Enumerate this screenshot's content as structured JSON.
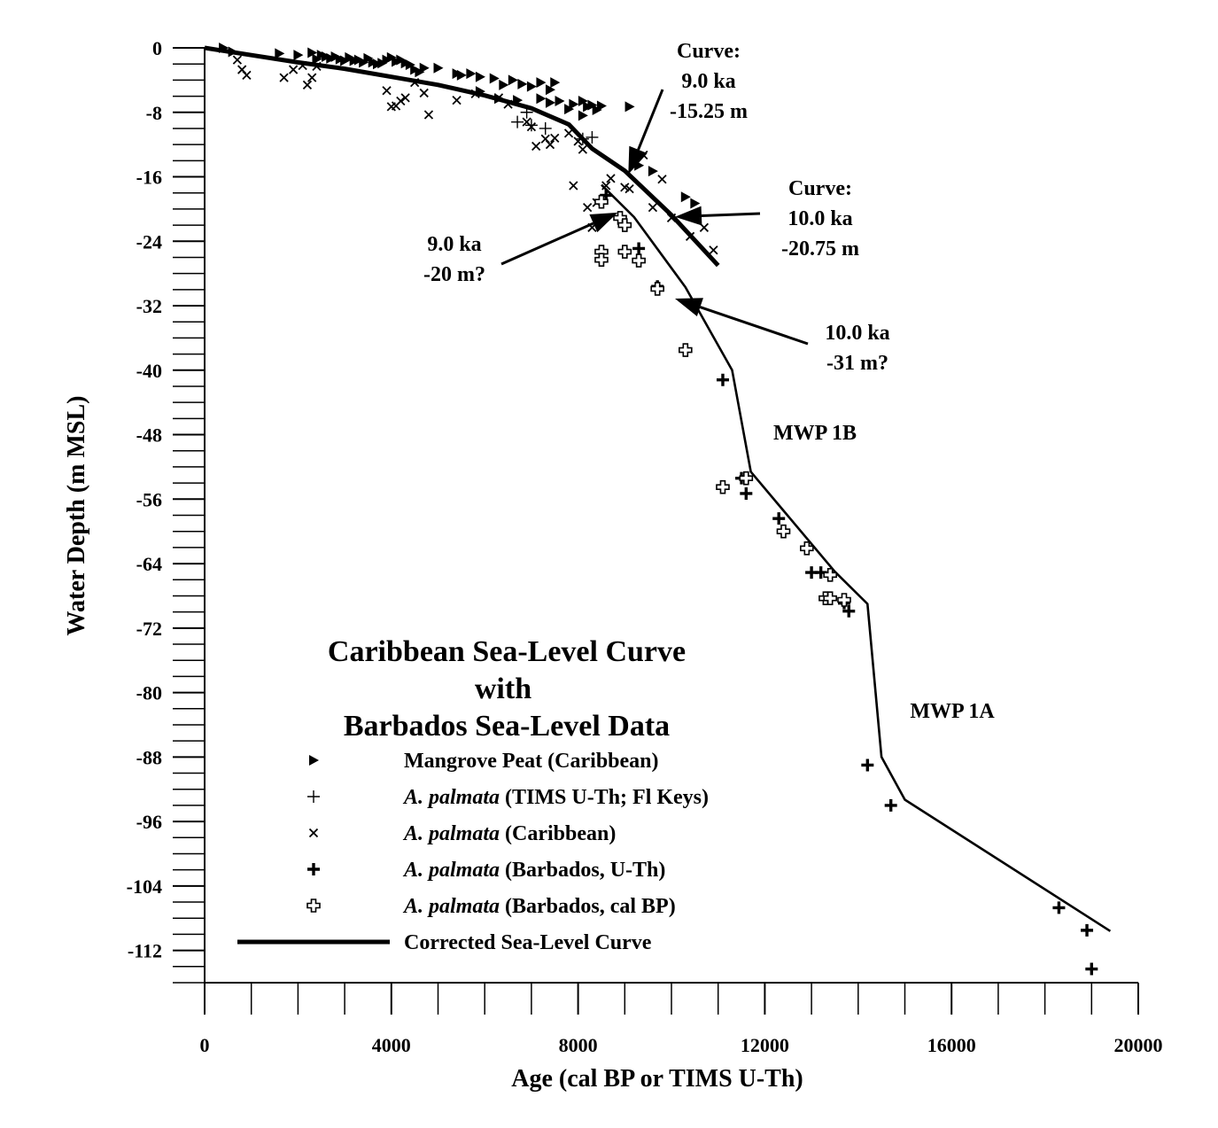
{
  "chart_data": {
    "type": "scatter",
    "title": [
      "Caribbean Sea-Level Curve",
      "with",
      "Barbados Sea-Level Data"
    ],
    "xlabel": "Age (cal BP or TIMS U-Th)",
    "ylabel": "Water Depth (m MSL)",
    "xlim": [
      0,
      20000
    ],
    "ylim": [
      -116,
      0
    ],
    "x_ticks": [
      0,
      4000,
      8000,
      12000,
      16000,
      20000
    ],
    "y_ticks": [
      0,
      -8,
      -16,
      -24,
      -32,
      -40,
      -48,
      -56,
      -64,
      -72,
      -80,
      -88,
      -96,
      -104,
      -112
    ],
    "legend_position": "bottom-left",
    "series": [
      {
        "name": "Mangrove Peat (Caribbean)",
        "label_parts": [
          {
            "text": "Mangrove Peat (Caribbean)",
            "italic": false
          }
        ],
        "marker": "triangle-right",
        "points": [
          [
            400,
            0
          ],
          [
            600,
            -0.5
          ],
          [
            1600,
            -0.7
          ],
          [
            2000,
            -0.9
          ],
          [
            2300,
            -0.6
          ],
          [
            2400,
            -1.4
          ],
          [
            2500,
            -0.9
          ],
          [
            2600,
            -1.1
          ],
          [
            2700,
            -1.3
          ],
          [
            2800,
            -1.1
          ],
          [
            2900,
            -1.4
          ],
          [
            3000,
            -1.6
          ],
          [
            3100,
            -1.2
          ],
          [
            3200,
            -1.6
          ],
          [
            3300,
            -1.5
          ],
          [
            3400,
            -1.8
          ],
          [
            3500,
            -1.3
          ],
          [
            3600,
            -1.8
          ],
          [
            3700,
            -2.0
          ],
          [
            3800,
            -1.9
          ],
          [
            3900,
            -1.5
          ],
          [
            4000,
            -1.2
          ],
          [
            4100,
            -1.7
          ],
          [
            4200,
            -1.5
          ],
          [
            4300,
            -1.9
          ],
          [
            4400,
            -2.1
          ],
          [
            4500,
            -2.7
          ],
          [
            4600,
            -3.0
          ],
          [
            4700,
            -2.5
          ],
          [
            5000,
            -2.5
          ],
          [
            5400,
            -3.2
          ],
          [
            5500,
            -3.4
          ],
          [
            5700,
            -3.2
          ],
          [
            5900,
            -3.6
          ],
          [
            6200,
            -3.8
          ],
          [
            6400,
            -4.6
          ],
          [
            6600,
            -4.0
          ],
          [
            6800,
            -4.5
          ],
          [
            7000,
            -4.8
          ],
          [
            7200,
            -4.3
          ],
          [
            7400,
            -5.2
          ],
          [
            7500,
            -4.3
          ],
          [
            7600,
            -6.6
          ],
          [
            7900,
            -7.0
          ],
          [
            8100,
            -6.6
          ],
          [
            8200,
            -7.3
          ],
          [
            8300,
            -7.1
          ],
          [
            8400,
            -7.7
          ],
          [
            8500,
            -7.2
          ],
          [
            9100,
            -7.3
          ],
          [
            9300,
            -14.6
          ],
          [
            9600,
            -15.3
          ],
          [
            10300,
            -18.5
          ],
          [
            10500,
            -19.3
          ],
          [
            5900,
            -5.4
          ],
          [
            6300,
            -6.3
          ],
          [
            6700,
            -6.5
          ],
          [
            7200,
            -6.3
          ],
          [
            7400,
            -6.8
          ],
          [
            7800,
            -7.6
          ],
          [
            8100,
            -8.4
          ]
        ]
      },
      {
        "name": "A. palmata (TIMS U-Th; Fl Keys)",
        "label_parts": [
          {
            "text": "A. palmata",
            "italic": true
          },
          {
            "text": " (TIMS U-Th; Fl Keys)",
            "italic": false
          }
        ],
        "marker": "plus-thin",
        "points": [
          [
            6700,
            -9.2
          ],
          [
            7000,
            -9.6
          ],
          [
            7300,
            -10.0
          ],
          [
            8100,
            -11.3
          ],
          [
            8300,
            -11.1
          ],
          [
            6900,
            -8.0
          ]
        ]
      },
      {
        "name": "A. palmata (Caribbean)",
        "label_parts": [
          {
            "text": "A. palmata",
            "italic": true
          },
          {
            "text": " (Caribbean)",
            "italic": false
          }
        ],
        "marker": "x",
        "points": [
          [
            700,
            -1.5
          ],
          [
            800,
            -2.7
          ],
          [
            900,
            -3.4
          ],
          [
            1700,
            -3.7
          ],
          [
            1900,
            -2.7
          ],
          [
            2100,
            -2.2
          ],
          [
            2200,
            -4.6
          ],
          [
            2300,
            -3.7
          ],
          [
            2400,
            -2.3
          ],
          [
            3900,
            -5.3
          ],
          [
            4000,
            -7.3
          ],
          [
            4100,
            -7.2
          ],
          [
            4200,
            -6.6
          ],
          [
            4300,
            -6.2
          ],
          [
            4500,
            -4.3
          ],
          [
            4700,
            -5.6
          ],
          [
            4800,
            -8.3
          ],
          [
            5400,
            -6.5
          ],
          [
            5800,
            -5.7
          ],
          [
            6300,
            -6.2
          ],
          [
            6500,
            -7.0
          ],
          [
            6900,
            -9.2
          ],
          [
            7000,
            -9.8
          ],
          [
            7100,
            -12.2
          ],
          [
            7300,
            -11.3
          ],
          [
            7400,
            -12.0
          ],
          [
            7500,
            -11.2
          ],
          [
            7800,
            -10.6
          ],
          [
            8000,
            -11.6
          ],
          [
            8100,
            -12.6
          ],
          [
            7900,
            -17.1
          ],
          [
            8200,
            -19.8
          ],
          [
            8300,
            -22.3
          ],
          [
            8400,
            -19.2
          ],
          [
            8600,
            -17.1
          ],
          [
            8700,
            -16.2
          ],
          [
            9000,
            -17.3
          ],
          [
            9100,
            -17.5
          ],
          [
            9600,
            -19.8
          ],
          [
            9800,
            -16.3
          ],
          [
            10000,
            -21.1
          ],
          [
            10400,
            -23.4
          ],
          [
            10700,
            -22.3
          ],
          [
            10900,
            -25.1
          ],
          [
            9400,
            -13.3
          ]
        ]
      },
      {
        "name": "A. palmata (Barbados, U-Th)",
        "label_parts": [
          {
            "text": "A. palmata",
            "italic": true
          },
          {
            "text": " (Barbados, U-Th)",
            "italic": false
          }
        ],
        "marker": "plus-bold",
        "points": [
          [
            8600,
            -18.3
          ],
          [
            9300,
            -24.9
          ],
          [
            9700,
            -29.6
          ],
          [
            11100,
            -41.2
          ],
          [
            11500,
            -53.4
          ],
          [
            11600,
            -55.3
          ],
          [
            12300,
            -58.4
          ],
          [
            13000,
            -65.1
          ],
          [
            13200,
            -65.1
          ],
          [
            13700,
            -68.9
          ],
          [
            13800,
            -69.9
          ],
          [
            14200,
            -89.0
          ],
          [
            14700,
            -94.0
          ],
          [
            18300,
            -106.7
          ],
          [
            18900,
            -109.5
          ],
          [
            19000,
            -114.3
          ]
        ]
      },
      {
        "name": "A. palmata (Barbados, cal BP)",
        "label_parts": [
          {
            "text": "A. palmata",
            "italic": true
          },
          {
            "text": " (Barbados, cal BP)",
            "italic": false
          }
        ],
        "marker": "plus-open",
        "points": [
          [
            8500,
            -19.1
          ],
          [
            8900,
            -21.1
          ],
          [
            9000,
            -22.0
          ],
          [
            9000,
            -25.3
          ],
          [
            8500,
            -25.3
          ],
          [
            8500,
            -26.3
          ],
          [
            9300,
            -26.4
          ],
          [
            9700,
            -29.9
          ],
          [
            10300,
            -37.5
          ],
          [
            11100,
            -54.5
          ],
          [
            11600,
            -53.4
          ],
          [
            12400,
            -60.0
          ],
          [
            12900,
            -62.1
          ],
          [
            13400,
            -65.4
          ],
          [
            13300,
            -68.3
          ],
          [
            13400,
            -68.3
          ],
          [
            13700,
            -68.5
          ]
        ]
      },
      {
        "name": "Corrected Sea-Level Curve",
        "label_parts": [
          {
            "text": "Corrected Sea-Level Curve",
            "italic": false
          }
        ],
        "marker": "line",
        "points": [
          [
            8500,
            -17.0
          ],
          [
            9200,
            -21.0
          ],
          [
            10300,
            -29.7
          ],
          [
            11300,
            -40.0
          ],
          [
            11700,
            -52.6
          ],
          [
            13500,
            -65.0
          ],
          [
            14200,
            -69.0
          ],
          [
            14500,
            -88.0
          ],
          [
            15000,
            -93.3
          ],
          [
            19400,
            -109.6
          ]
        ]
      },
      {
        "name": "Caribbean Sea-Level Curve",
        "label_parts": [],
        "marker": "line-bold",
        "points": [
          [
            0,
            0
          ],
          [
            1000,
            -0.9
          ],
          [
            2000,
            -1.8
          ],
          [
            3000,
            -2.6
          ],
          [
            4000,
            -3.6
          ],
          [
            5000,
            -4.6
          ],
          [
            6000,
            -5.9
          ],
          [
            7000,
            -7.5
          ],
          [
            7800,
            -9.5
          ],
          [
            8300,
            -12.5
          ],
          [
            9000,
            -15.25
          ],
          [
            10000,
            -20.75
          ],
          [
            11000,
            -27.0
          ]
        ]
      }
    ],
    "annotations": [
      {
        "lines": [
          "Curve:",
          "9.0 ka",
          "-15.25 m"
        ],
        "x": 9000,
        "y": -15.25
      },
      {
        "lines": [
          "Curve:",
          "10.0 ka",
          "-20.75 m"
        ],
        "x": 10000,
        "y": -20.75
      },
      {
        "lines": [
          "9.0 ka",
          "-20 m?"
        ],
        "x": 9000,
        "y": -20
      },
      {
        "lines": [
          "10.0 ka",
          "-31 m?"
        ],
        "x": 10000,
        "y": -31
      },
      {
        "lines": [
          "MWP 1B"
        ]
      },
      {
        "lines": [
          "MWP 1A"
        ]
      }
    ]
  }
}
